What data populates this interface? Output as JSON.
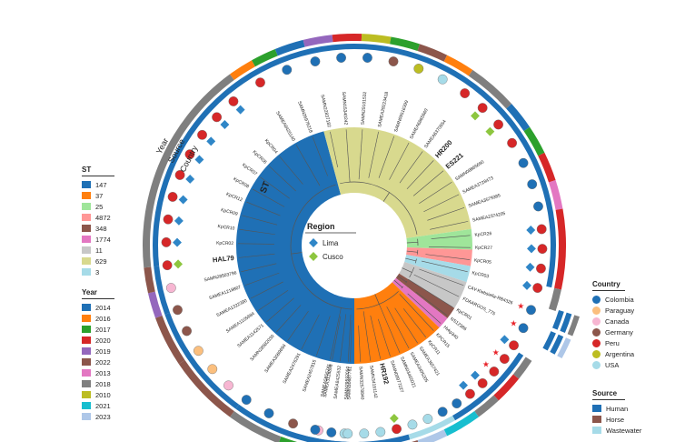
{
  "rings": {
    "year_label": "Year",
    "source_label": "Source",
    "country_label": "Country",
    "st_label": "ST"
  },
  "region_legend": {
    "title": "Region",
    "items": [
      {
        "label": "Lima",
        "color": "#2f86c7",
        "shape": "diamond"
      },
      {
        "label": "Cusco",
        "color": "#8dc63f",
        "shape": "diamond"
      }
    ]
  },
  "st_legend": {
    "title": "ST",
    "items": [
      {
        "label": "147",
        "color": "#1f70b5"
      },
      {
        "label": "37",
        "color": "#ff7f0e"
      },
      {
        "label": "25",
        "color": "#9fe59a"
      },
      {
        "label": "4872",
        "color": "#ff9796"
      },
      {
        "label": "348",
        "color": "#8c564b"
      },
      {
        "label": "1774",
        "color": "#e377c2"
      },
      {
        "label": "11",
        "color": "#c7c7c7"
      },
      {
        "label": "629",
        "color": "#d8d98e"
      },
      {
        "label": "3",
        "color": "#a6dbe8"
      }
    ]
  },
  "year_legend": {
    "title": "Year",
    "items": [
      {
        "label": "2014",
        "color": "#1f70b5"
      },
      {
        "label": "2016",
        "color": "#ff7f0e"
      },
      {
        "label": "2017",
        "color": "#2ca02c"
      },
      {
        "label": "2020",
        "color": "#d62728"
      },
      {
        "label": "2019",
        "color": "#9467bd"
      },
      {
        "label": "2022",
        "color": "#8c564b"
      },
      {
        "label": "2013",
        "color": "#e377c2"
      },
      {
        "label": "2018",
        "color": "#7f7f7f"
      },
      {
        "label": "2010",
        "color": "#bcbd22"
      },
      {
        "label": "2021",
        "color": "#17becf"
      },
      {
        "label": "2023",
        "color": "#aec7e8"
      }
    ]
  },
  "country_legend": {
    "title": "Country",
    "items": [
      {
        "label": "Colombia",
        "color": "#1f70b5"
      },
      {
        "label": "Paraguay",
        "color": "#fbbf7e"
      },
      {
        "label": "Canada",
        "color": "#f7b6d2"
      },
      {
        "label": "Germany",
        "color": "#8c564b"
      },
      {
        "label": "Peru",
        "color": "#d62728"
      },
      {
        "label": "Argentina",
        "color": "#bcbd22"
      },
      {
        "label": "USA",
        "color": "#a6dbe8"
      }
    ]
  },
  "source_legend": {
    "title": "Source",
    "items": [
      {
        "label": "Human",
        "color": "#1f70b5"
      },
      {
        "label": "Horse",
        "color": "#8c564b"
      },
      {
        "label": "Wastewater",
        "color": "#a6dbe8"
      }
    ]
  },
  "clades": [
    {
      "st": "147",
      "color": "#1f70b5",
      "start": 90,
      "end": 255
    },
    {
      "st": "629",
      "color": "#d8d98e",
      "start": 255,
      "end": 352
    },
    {
      "st": "25",
      "color": "#9fe59a",
      "start": 352,
      "end": 362
    },
    {
      "st": "4872",
      "color": "#ff9796",
      "start": 362,
      "end": 370
    },
    {
      "st": "3",
      "color": "#a6dbe8",
      "start": 370,
      "end": 378
    },
    {
      "st": "11",
      "color": "#c7c7c7",
      "start": 378,
      "end": 392
    },
    {
      "st": "348",
      "color": "#8c564b",
      "start": 392,
      "end": 398
    },
    {
      "st": "1774",
      "color": "#e377c2",
      "start": 398,
      "end": 404
    },
    {
      "st": "37",
      "color": "#ff7f0e",
      "start": 404,
      "end": 450
    }
  ],
  "tips": [
    {
      "label": "SAMN29592050",
      "angle": 93,
      "country": "#a6dbe8",
      "region": "",
      "bold": false,
      "star": false
    },
    {
      "label": "SAMEA3128898",
      "angle": 101,
      "country": "#f7b6d2",
      "region": "",
      "bold": false,
      "star": false
    },
    {
      "label": "SAMEA2457815",
      "angle": 109,
      "country": "#8c564b",
      "region": "",
      "bold": false,
      "star": false
    },
    {
      "label": "SAMEA2476291",
      "angle": 117,
      "country": "#1f70b5",
      "region": "",
      "bold": false,
      "star": false
    },
    {
      "label": "SAMEA3069694",
      "angle": 125,
      "country": "#1f70b5",
      "region": "",
      "bold": false,
      "star": false
    },
    {
      "label": "SAMN28582030",
      "angle": 132,
      "country": "#f7b6d2",
      "region": "",
      "bold": false,
      "star": false
    },
    {
      "label": "SAMEA1142571",
      "angle": 139,
      "country": "#fbbf7e",
      "region": "",
      "bold": false,
      "star": false
    },
    {
      "label": "SAMEA1105684",
      "angle": 146,
      "country": "#fbbf7e",
      "region": "",
      "bold": false,
      "star": false
    },
    {
      "label": "SAMEA1322390",
      "angle": 153,
      "country": "#8c564b",
      "region": "",
      "bold": false,
      "star": false
    },
    {
      "label": "SAMEA1218807",
      "angle": 160,
      "country": "#8c564b",
      "region": "",
      "bold": false,
      "star": false
    },
    {
      "label": "SAMN28503796",
      "angle": 167,
      "country": "#f7b6d2",
      "region": "",
      "bold": false,
      "star": false
    },
    {
      "label": "HAL79",
      "angle": 174,
      "country": "#d62728",
      "region": "#8dc63f",
      "bold": true,
      "star": false
    },
    {
      "label": "KpCR02",
      "angle": 181,
      "country": "#d62728",
      "region": "#2f86c7",
      "bold": false,
      "star": false
    },
    {
      "label": "KpCR10",
      "angle": 188,
      "country": "#d62728",
      "region": "#2f86c7",
      "bold": false,
      "star": false
    },
    {
      "label": "KpCR09",
      "angle": 195,
      "country": "#d62728",
      "region": "#2f86c7",
      "bold": false,
      "star": false
    },
    {
      "label": "KpCR12",
      "angle": 202,
      "country": "#d62728",
      "region": "#2f86c7",
      "bold": false,
      "star": false
    },
    {
      "label": "KpCR08",
      "angle": 209,
      "country": "#d62728",
      "region": "#2f86c7",
      "bold": false,
      "star": false
    },
    {
      "label": "KpCR07",
      "angle": 216,
      "country": "#d62728",
      "region": "#2f86c7",
      "bold": false,
      "star": false
    },
    {
      "label": "KpCR06",
      "angle": 223,
      "country": "#d62728",
      "region": "#2f86c7",
      "bold": false,
      "star": false
    },
    {
      "label": "KpCR04",
      "angle": 230,
      "country": "#d62728",
      "region": "#2f86c7",
      "bold": false,
      "star": false
    },
    {
      "label": "SAMEA8425140",
      "angle": 240,
      "country": "#d62728",
      "region": "",
      "bold": false,
      "star": false
    },
    {
      "label": "SAMN26976218",
      "angle": 249,
      "country": "#1f70b5",
      "region": "",
      "bold": false,
      "star": false
    },
    {
      "label": "SAMN22837182",
      "angle": 258,
      "country": "#1f70b5",
      "region": "",
      "bold": false,
      "star": false
    },
    {
      "label": "SAMN15340242",
      "angle": 266,
      "country": "#1f70b5",
      "region": "",
      "bold": false,
      "star": false
    },
    {
      "label": "SAMN29101532",
      "angle": 274,
      "country": "#1f70b5",
      "region": "",
      "bold": false,
      "star": false
    },
    {
      "label": "SAMEA29223418",
      "angle": 282,
      "country": "#8c564b",
      "region": "",
      "bold": false,
      "star": false
    },
    {
      "label": "SAMN09516399",
      "angle": 290,
      "country": "#bcbd22",
      "region": "",
      "bold": false,
      "star": false
    },
    {
      "label": "SAMEA6865660",
      "angle": 298,
      "country": "#a6dbe8",
      "region": "",
      "bold": false,
      "star": false
    },
    {
      "label": "SAMEA6370554",
      "angle": 306,
      "country": "#d62728",
      "region": "",
      "bold": false,
      "star": false
    },
    {
      "label": "HR200",
      "angle": 313,
      "country": "#d62728",
      "region": "#8dc63f",
      "bold": true,
      "star": false
    },
    {
      "label": "ES221",
      "angle": 320,
      "country": "#d62728",
      "region": "#8dc63f",
      "bold": true,
      "star": false
    },
    {
      "label": "SAMN08865690",
      "angle": 327,
      "country": "#d62728",
      "region": "",
      "bold": false,
      "star": false
    },
    {
      "label": "SAMEA3728473",
      "angle": 334,
      "country": "#1f70b5",
      "region": "",
      "bold": false,
      "star": false
    },
    {
      "label": "SAMEA3579385",
      "angle": 341,
      "country": "#1f70b5",
      "region": "",
      "bold": false,
      "star": false
    },
    {
      "label": "SAMEA2374205",
      "angle": 348,
      "country": "#1f70b5",
      "region": "",
      "bold": false,
      "star": false
    },
    {
      "label": "KpCR26",
      "angle": 355,
      "country": "#d62728",
      "region": "#2f86c7",
      "bold": false,
      "star": false
    },
    {
      "label": "KpCR27",
      "angle": 361,
      "country": "#d62728",
      "region": "#2f86c7",
      "bold": false,
      "star": false
    },
    {
      "label": "KpCR05",
      "angle": 367,
      "country": "#d62728",
      "region": "#2f86c7",
      "bold": false,
      "star": false
    },
    {
      "label": "KpCR03",
      "angle": 373,
      "country": "#d62728",
      "region": "#2f86c7",
      "bold": false,
      "star": false
    },
    {
      "label": "CAV-Klebsiella-RB4326",
      "angle": 380,
      "country": "#1f70b5",
      "region": "",
      "bold": false,
      "star": true
    },
    {
      "label": "FDAARGOS_775",
      "angle": 386,
      "country": "#1f70b5",
      "region": "",
      "bold": false,
      "star": true
    },
    {
      "label": "KpCR01",
      "angle": 392,
      "country": "#d62728",
      "region": "#2f86c7",
      "bold": false,
      "star": false
    },
    {
      "label": "NS12386",
      "angle": 397,
      "country": "#d62728",
      "region": "",
      "bold": false,
      "star": true
    },
    {
      "label": "Hvkp340",
      "angle": 402,
      "country": "#d62728",
      "region": "",
      "bold": false,
      "star": true
    },
    {
      "label": "KPCR15",
      "angle": 407,
      "country": "#d62728",
      "region": "#2f86c7",
      "bold": false,
      "star": false
    },
    {
      "label": "KpCR11",
      "angle": 412,
      "country": "#d62728",
      "region": "#2f86c7",
      "bold": false,
      "star": false
    },
    {
      "label": "SAMEA3657421",
      "angle": 417,
      "country": "#1f70b5",
      "region": "",
      "bold": false,
      "star": false
    },
    {
      "label": "SAMEA3495205",
      "angle": 422,
      "country": "#1f70b5",
      "region": "",
      "bold": false,
      "star": false
    },
    {
      "label": "SAMN03465021",
      "angle": 427,
      "country": "#a6dbe8",
      "region": "",
      "bold": false,
      "star": false
    },
    {
      "label": "SAMN09977227",
      "angle": 432,
      "country": "#a6dbe8",
      "region": "",
      "bold": false,
      "star": false
    },
    {
      "label": "HR192",
      "angle": 437,
      "country": "#d62728",
      "region": "#8dc63f",
      "bold": true,
      "star": false
    },
    {
      "label": "SAMN34191142",
      "angle": 442,
      "country": "#a6dbe8",
      "region": "",
      "bold": false,
      "star": false
    },
    {
      "label": "SAMN32578840",
      "angle": 447,
      "country": "#a6dbe8",
      "region": "",
      "bold": false,
      "star": false
    },
    {
      "label": "SAMN30687761",
      "angle": 452,
      "country": "#a6dbe8",
      "region": "",
      "bold": false,
      "star": false
    },
    {
      "label": "SAMEA8425532",
      "angle": 457,
      "country": "#1f70b5",
      "region": "",
      "bold": false,
      "star": false
    },
    {
      "label": "SAMEA5855741",
      "angle": 462,
      "country": "#1f70b5",
      "region": "",
      "bold": false,
      "star": false
    }
  ],
  "year_ring": [
    {
      "start": 88,
      "end": 97,
      "color": "#aec7e8"
    },
    {
      "start": 97,
      "end": 104,
      "color": "#8c564b"
    },
    {
      "start": 104,
      "end": 111,
      "color": "#2ca02c"
    },
    {
      "start": 111,
      "end": 126,
      "color": "#7f7f7f"
    },
    {
      "start": 126,
      "end": 146,
      "color": "#8c564b"
    },
    {
      "start": 146,
      "end": 160,
      "color": "#8c564b"
    },
    {
      "start": 160,
      "end": 167,
      "color": "#9467bd"
    },
    {
      "start": 167,
      "end": 174,
      "color": "#8c564b"
    },
    {
      "start": 174,
      "end": 234,
      "color": "#7f7f7f"
    },
    {
      "start": 234,
      "end": 241,
      "color": "#ff7f0e"
    },
    {
      "start": 241,
      "end": 248,
      "color": "#2ca02c"
    },
    {
      "start": 248,
      "end": 256,
      "color": "#1f70b5"
    },
    {
      "start": 256,
      "end": 264,
      "color": "#9467bd"
    },
    {
      "start": 264,
      "end": 272,
      "color": "#d62728"
    },
    {
      "start": 272,
      "end": 280,
      "color": "#bcbd22"
    },
    {
      "start": 280,
      "end": 288,
      "color": "#2ca02c"
    },
    {
      "start": 288,
      "end": 296,
      "color": "#8c564b"
    },
    {
      "start": 296,
      "end": 304,
      "color": "#ff7f0e"
    },
    {
      "start": 304,
      "end": 318,
      "color": "#7f7f7f"
    },
    {
      "start": 318,
      "end": 326,
      "color": "#1f70b5"
    },
    {
      "start": 326,
      "end": 334,
      "color": "#2ca02c"
    },
    {
      "start": 334,
      "end": 342,
      "color": "#d62728"
    },
    {
      "start": 342,
      "end": 350,
      "color": "#e377c2"
    },
    {
      "start": 350,
      "end": 372,
      "color": "#d62728"
    },
    {
      "start": 372,
      "end": 378,
      "color": "#7f7f7f"
    },
    {
      "start": 393,
      "end": 399,
      "color": "#7f7f7f"
    },
    {
      "start": 399,
      "end": 407,
      "color": "#d62728"
    },
    {
      "start": 407,
      "end": 414,
      "color": "#7f7f7f"
    },
    {
      "start": 414,
      "end": 424,
      "color": "#17becf"
    },
    {
      "start": 424,
      "end": 432,
      "color": "#aec7e8"
    },
    {
      "start": 432,
      "end": 450,
      "color": "#8c564b"
    },
    {
      "start": 450,
      "end": 459,
      "color": "#aec7e8"
    },
    {
      "start": 459,
      "end": 464,
      "color": "#e377c2"
    }
  ],
  "source_ring": [
    {
      "start": 88,
      "end": 126,
      "color": "#1f70b5"
    },
    {
      "start": 126,
      "end": 160,
      "color": "#1f70b5"
    },
    {
      "start": 160,
      "end": 174,
      "color": "#1f70b5"
    },
    {
      "start": 174,
      "end": 372,
      "color": "#1f70b5"
    },
    {
      "start": 393,
      "end": 420,
      "color": "#1f70b5"
    },
    {
      "start": 420,
      "end": 434,
      "color": "#a6dbe8"
    },
    {
      "start": 434,
      "end": 464,
      "color": "#1f70b5"
    }
  ],
  "detached": [
    {
      "angle": 380,
      "colors": [
        "#1f70b5",
        "#1f70b5",
        "#7f7f7f"
      ]
    },
    {
      "angle": 386,
      "colors": [
        "#1f70b5",
        "#1f70b5",
        "#aec7e8"
      ]
    }
  ]
}
